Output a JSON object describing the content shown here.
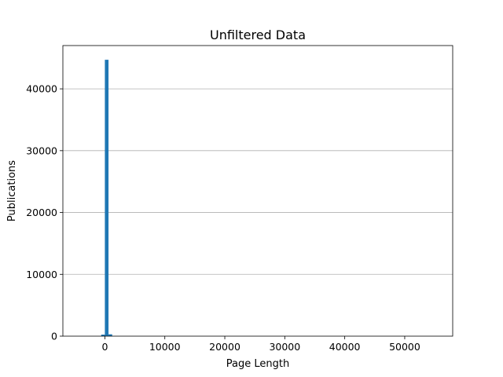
{
  "chart_data": {
    "type": "bar",
    "title": "Unfiltered Data",
    "xlabel": "Page Length",
    "ylabel": "Publications",
    "xlim": [
      -7000,
      58000
    ],
    "ylim": [
      0,
      47000
    ],
    "xticks": [
      0,
      10000,
      20000,
      30000,
      40000,
      50000
    ],
    "yticks": [
      0,
      10000,
      20000,
      30000,
      40000
    ],
    "grid": "y",
    "bar_color": "#1f77b4",
    "bin_width": 610,
    "bins": [
      {
        "x": -610,
        "value": 250
      },
      {
        "x": 0,
        "value": 44700
      },
      {
        "x": 610,
        "value": 300
      }
    ]
  }
}
